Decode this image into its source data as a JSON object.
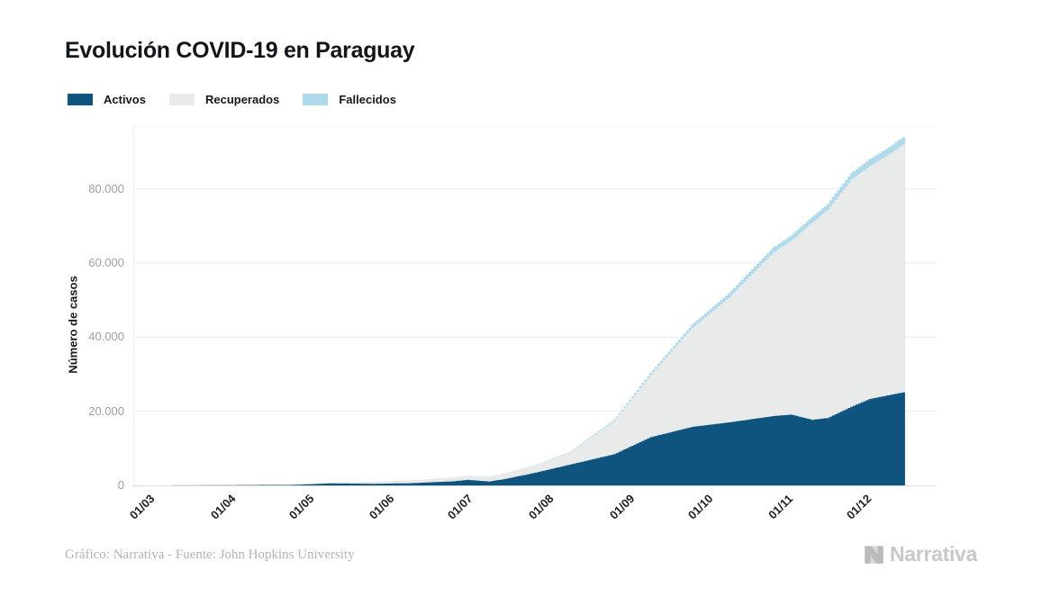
{
  "header": {
    "title": "Evolución COVID-19 en Paraguay"
  },
  "legend": [
    {
      "label": "Activos",
      "color": "#0e547e"
    },
    {
      "label": "Recuperados",
      "color": "#e9eaea"
    },
    {
      "label": "Fallecidos",
      "color": "#aedaec"
    }
  ],
  "footer": {
    "credit": "Gráfico: Narrativa - Fuente: John Hopkins University",
    "logo_text": "Narrativa"
  },
  "chart_data": {
    "type": "area",
    "stacked": true,
    "title": "Evolución COVID-19 en Paraguay",
    "xlabel": "",
    "ylabel": "Número de casos",
    "legend_position": "top-left",
    "grid": "horizontal",
    "ylim": [
      0,
      97000
    ],
    "x_start_date": "2020-03-01",
    "x_end_date": "2020-12-21",
    "x_domain_days": [
      0,
      295
    ],
    "x_ticks": [
      {
        "label": "01/03",
        "day": 0
      },
      {
        "label": "01/04",
        "day": 31
      },
      {
        "label": "01/05",
        "day": 61
      },
      {
        "label": "01/06",
        "day": 92
      },
      {
        "label": "01/07",
        "day": 122
      },
      {
        "label": "01/08",
        "day": 153
      },
      {
        "label": "01/09",
        "day": 184
      },
      {
        "label": "01/10",
        "day": 214
      },
      {
        "label": "01/11",
        "day": 245
      },
      {
        "label": "01/12",
        "day": 275
      }
    ],
    "y_ticks": [
      {
        "label": "0",
        "value": 0
      },
      {
        "label": "20.000",
        "value": 20000
      },
      {
        "label": "40.000",
        "value": 40000
      },
      {
        "label": "60.000",
        "value": 60000
      },
      {
        "label": "80.000",
        "value": 80000
      }
    ],
    "series_order": [
      "activos",
      "recuperados",
      "fallecidos"
    ],
    "colors": {
      "activos": "#0e547e",
      "recuperados": "#e9eaea",
      "fallecidos": "#aedaec"
    },
    "samples": [
      {
        "date": "2020-03-01",
        "day": 0,
        "activos": 1,
        "recuperados": 0,
        "fallecidos": 0
      },
      {
        "date": "2020-03-10",
        "day": 9,
        "activos": 5,
        "recuperados": 0,
        "fallecidos": 0
      },
      {
        "date": "2020-03-20",
        "day": 19,
        "activos": 18,
        "recuperados": 1,
        "fallecidos": 1
      },
      {
        "date": "2020-04-01",
        "day": 31,
        "activos": 54,
        "recuperados": 12,
        "fallecidos": 3
      },
      {
        "date": "2020-04-15",
        "day": 45,
        "activos": 105,
        "recuperados": 49,
        "fallecidos": 7
      },
      {
        "date": "2020-05-01",
        "day": 61,
        "activos": 135,
        "recuperados": 128,
        "fallecidos": 10
      },
      {
        "date": "2020-05-15",
        "day": 75,
        "activos": 540,
        "recuperados": 190,
        "fallecidos": 11
      },
      {
        "date": "2020-06-01",
        "day": 92,
        "activos": 440,
        "recuperados": 515,
        "fallecidos": 11
      },
      {
        "date": "2020-06-15",
        "day": 106,
        "activos": 590,
        "recuperados": 700,
        "fallecidos": 13
      },
      {
        "date": "2020-07-01",
        "day": 122,
        "activos": 1100,
        "recuperados": 1010,
        "fallecidos": 16
      },
      {
        "date": "2020-07-07",
        "day": 128,
        "activos": 1500,
        "recuperados": 1100,
        "fallecidos": 19
      },
      {
        "date": "2020-07-15",
        "day": 136,
        "activos": 1050,
        "recuperados": 1320,
        "fallecidos": 25
      },
      {
        "date": "2020-07-21",
        "day": 142,
        "activos": 1700,
        "recuperados": 1500,
        "fallecidos": 30
      },
      {
        "date": "2020-07-25",
        "day": 146,
        "activos": 2300,
        "recuperados": 1700,
        "fallecidos": 37
      },
      {
        "date": "2020-08-01",
        "day": 153,
        "activos": 3300,
        "recuperados": 1990,
        "fallecidos": 49
      },
      {
        "date": "2020-08-15",
        "day": 167,
        "activos": 5600,
        "recuperados": 3300,
        "fallecidos": 122
      },
      {
        "date": "2020-09-01",
        "day": 184,
        "activos": 8400,
        "recuperados": 8950,
        "fallecidos": 346
      },
      {
        "date": "2020-09-15",
        "day": 198,
        "activos": 13000,
        "recuperados": 16830,
        "fallecidos": 572
      },
      {
        "date": "2020-10-01",
        "day": 214,
        "activos": 15800,
        "recuperados": 26700,
        "fallecidos": 925
      },
      {
        "date": "2020-10-15",
        "day": 228,
        "activos": 17000,
        "recuperados": 33650,
        "fallecidos": 1150
      },
      {
        "date": "2020-11-01",
        "day": 245,
        "activos": 18700,
        "recuperados": 44100,
        "fallecidos": 1390
      },
      {
        "date": "2020-11-08",
        "day": 252,
        "activos": 19100,
        "recuperados": 46900,
        "fallecidos": 1470
      },
      {
        "date": "2020-11-16",
        "day": 260,
        "activos": 17700,
        "recuperados": 53200,
        "fallecidos": 1570
      },
      {
        "date": "2020-11-22",
        "day": 266,
        "activos": 18200,
        "recuperados": 56150,
        "fallecidos": 1650
      },
      {
        "date": "2020-12-01",
        "day": 275,
        "activos": 21200,
        "recuperados": 61300,
        "fallecidos": 1790
      },
      {
        "date": "2020-12-08",
        "day": 282,
        "activos": 23300,
        "recuperados": 62850,
        "fallecidos": 1860
      },
      {
        "date": "2020-12-15",
        "day": 289,
        "activos": 24300,
        "recuperados": 64800,
        "fallecidos": 1930
      },
      {
        "date": "2020-12-21",
        "day": 295,
        "activos": 25100,
        "recuperados": 66900,
        "fallecidos": 1990
      }
    ]
  }
}
